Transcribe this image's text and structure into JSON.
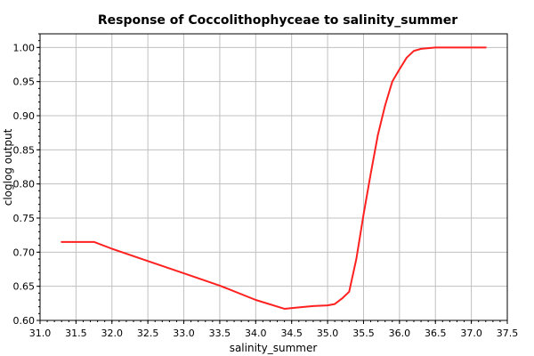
{
  "chart_data": {
    "type": "line",
    "title": "Response of Coccolithophyceae to salinity_summer",
    "xlabel": "salinity_summer",
    "ylabel": "cloglog output",
    "xlim": [
      31.0,
      37.5
    ],
    "ylim": [
      0.6,
      1.02
    ],
    "xticks": [
      "31.0",
      "31.5",
      "32.0",
      "32.5",
      "33.0",
      "33.5",
      "34.0",
      "34.5",
      "35.0",
      "35.5",
      "36.0",
      "36.5",
      "37.0",
      "37.5"
    ],
    "yticks": [
      "0.60",
      "0.65",
      "0.70",
      "0.75",
      "0.80",
      "0.85",
      "0.90",
      "0.95",
      "1.00"
    ],
    "grid": true,
    "line_color": "#ff2020",
    "series": [
      {
        "x": [
          31.3,
          31.75,
          32.0,
          32.5,
          33.0,
          33.5,
          34.0,
          34.4,
          34.6,
          34.8,
          35.0,
          35.1,
          35.2,
          35.3,
          35.4,
          35.5,
          35.6,
          35.7,
          35.8,
          35.9,
          36.0,
          36.1,
          36.2,
          36.3,
          36.4,
          36.5,
          36.6,
          37.2
        ],
        "y": [
          0.715,
          0.715,
          0.705,
          0.687,
          0.669,
          0.651,
          0.63,
          0.617,
          0.619,
          0.621,
          0.622,
          0.624,
          0.632,
          0.642,
          0.69,
          0.755,
          0.815,
          0.872,
          0.915,
          0.95,
          0.968,
          0.985,
          0.995,
          0.998,
          0.999,
          1.0,
          1.0,
          1.0
        ]
      }
    ]
  }
}
